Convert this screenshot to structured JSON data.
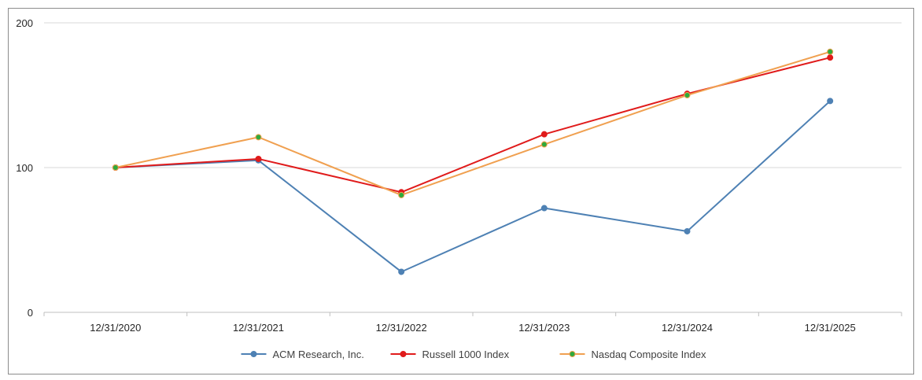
{
  "chart_data": {
    "type": "line",
    "categories": [
      "12/31/2020",
      "12/31/2021",
      "12/31/2022",
      "12/31/2023",
      "12/31/2024",
      "12/31/2025"
    ],
    "ylim": [
      0,
      200
    ],
    "yticks": [
      0,
      100,
      200
    ],
    "grid": true,
    "legend_position": "bottom",
    "series": [
      {
        "name": "ACM Research, Inc.",
        "color": "#4e81b4",
        "marker_color": "#4e81b4",
        "values": [
          100,
          105,
          28,
          72,
          56,
          146
        ]
      },
      {
        "name": "Russell 1000 Index",
        "color": "#e01b1b",
        "marker_color": "#e01b1b",
        "values": [
          100,
          106,
          83,
          123,
          151,
          176
        ]
      },
      {
        "name": "Nasdaq Composite Index",
        "color": "#f0a050",
        "marker_color": "#2eaa3c",
        "values": [
          100,
          121,
          81,
          116,
          150,
          180
        ]
      }
    ]
  }
}
